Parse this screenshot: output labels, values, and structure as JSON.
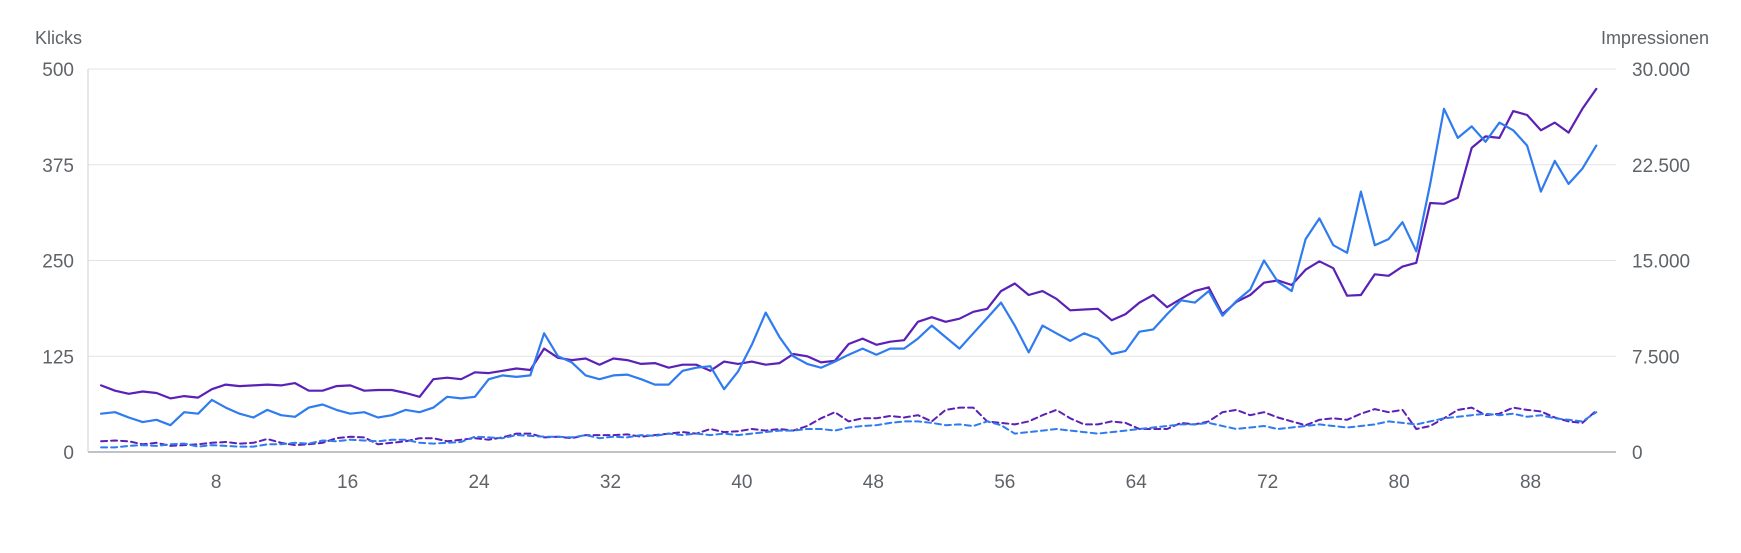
{
  "chart_data": {
    "type": "line",
    "left_axis_title": "Klicks",
    "right_axis_title": "Impressionen",
    "left_axis": {
      "ticks": [
        "0",
        "125",
        "250",
        "375",
        "500"
      ],
      "ylim": [
        0,
        500
      ]
    },
    "right_axis": {
      "ticks": [
        "0",
        "7.500",
        "15.000",
        "22.500",
        "30.000"
      ],
      "ylim": [
        0,
        30000
      ]
    },
    "x_ticks": [
      "8",
      "16",
      "24",
      "32",
      "40",
      "48",
      "56",
      "64",
      "72",
      "80",
      "88"
    ],
    "xlim": [
      0.2,
      93.2
    ],
    "grid": true,
    "colors": {
      "purple": "#5b21b6",
      "blue": "#2f7bf0"
    },
    "series": [
      {
        "color": "#5b21b6",
        "dash": false,
        "axis": "left",
        "values": [
          87,
          80,
          76,
          79,
          77,
          70,
          73,
          71,
          82,
          88,
          86,
          87,
          88,
          87,
          90,
          80,
          80,
          86,
          87,
          80,
          81,
          81,
          77,
          72,
          95,
          97,
          95,
          104,
          103,
          106,
          109,
          107,
          135,
          123,
          120,
          122,
          114,
          122,
          120,
          115,
          116,
          110,
          114,
          114,
          106,
          118,
          115,
          118,
          114,
          116,
          128,
          125,
          117,
          119,
          141,
          148,
          140,
          144,
          146,
          170,
          176,
          170,
          174,
          183,
          187,
          210,
          220,
          205,
          210,
          200,
          185,
          186,
          187,
          172,
          180,
          195,
          205,
          189,
          200,
          210,
          215,
          180,
          196,
          205,
          221,
          224,
          218,
          238,
          249,
          240,
          204,
          205,
          232,
          230,
          242,
          247,
          325,
          324,
          332,
          397,
          412,
          410,
          445,
          440,
          420,
          430,
          417,
          448,
          474
        ]
      },
      {
        "color": "#2f7bf0",
        "dash": false,
        "axis": "left",
        "values": [
          50,
          52,
          45,
          39,
          42,
          35,
          52,
          50,
          68,
          58,
          50,
          45,
          55,
          48,
          46,
          58,
          62,
          55,
          50,
          52,
          45,
          48,
          55,
          52,
          58,
          72,
          70,
          72,
          95,
          100,
          98,
          100,
          155,
          125,
          117,
          100,
          95,
          100,
          101,
          95,
          88,
          88,
          106,
          110,
          112,
          82,
          105,
          140,
          182,
          150,
          125,
          115,
          110,
          118,
          127,
          135,
          127,
          135,
          135,
          148,
          165,
          150,
          135,
          155,
          175,
          195,
          165,
          130,
          165,
          155,
          145,
          155,
          148,
          128,
          132,
          157,
          160,
          180,
          198,
          195,
          210,
          178,
          197,
          212,
          250,
          222,
          210,
          278,
          305,
          270,
          260,
          340,
          270,
          278,
          300,
          262,
          350,
          448,
          410,
          425,
          405,
          430,
          420,
          400,
          340,
          380,
          350,
          370,
          400
        ]
      },
      {
        "color": "#5b21b6",
        "dash": true,
        "axis": "left",
        "values": [
          14,
          15,
          14,
          10,
          12,
          8,
          9,
          10,
          12,
          13,
          11,
          12,
          17,
          12,
          9,
          10,
          12,
          18,
          20,
          19,
          10,
          12,
          14,
          18,
          18,
          14,
          16,
          18,
          16,
          19,
          24,
          24,
          19,
          20,
          18,
          22,
          22,
          22,
          23,
          20,
          22,
          24,
          26,
          24,
          30,
          26,
          27,
          30,
          28,
          30,
          28,
          34,
          44,
          52,
          40,
          44,
          44,
          47,
          45,
          48,
          40,
          55,
          58,
          58,
          40,
          38,
          36,
          40,
          48,
          55,
          44,
          36,
          36,
          40,
          38,
          30,
          30,
          30,
          38,
          36,
          40,
          52,
          55,
          48,
          52,
          45,
          40,
          35,
          42,
          44,
          42,
          50,
          56,
          52,
          55,
          30,
          34,
          44,
          55,
          58,
          48,
          50,
          58,
          55,
          53,
          45,
          40,
          38,
          54
        ]
      },
      {
        "color": "#2f7bf0",
        "dash": true,
        "axis": "left",
        "values": [
          6,
          6,
          8,
          9,
          8,
          10,
          11,
          7,
          9,
          8,
          7,
          7,
          10,
          10,
          12,
          11,
          15,
          14,
          16,
          15,
          14,
          16,
          16,
          12,
          11,
          12,
          13,
          20,
          19,
          18,
          22,
          21,
          20,
          20,
          19,
          22,
          18,
          20,
          19,
          22,
          21,
          24,
          22,
          24,
          22,
          24,
          22,
          24,
          26,
          28,
          28,
          30,
          30,
          28,
          32,
          34,
          35,
          38,
          40,
          40,
          38,
          35,
          36,
          34,
          40,
          35,
          24,
          26,
          28,
          30,
          28,
          26,
          24,
          26,
          28,
          30,
          32,
          34,
          36,
          36,
          38,
          34,
          30,
          32,
          34,
          30,
          32,
          34,
          36,
          34,
          32,
          34,
          36,
          40,
          38,
          36,
          40,
          44,
          46,
          48,
          50,
          48,
          50,
          46,
          48,
          44,
          42,
          40,
          52
        ]
      }
    ]
  }
}
